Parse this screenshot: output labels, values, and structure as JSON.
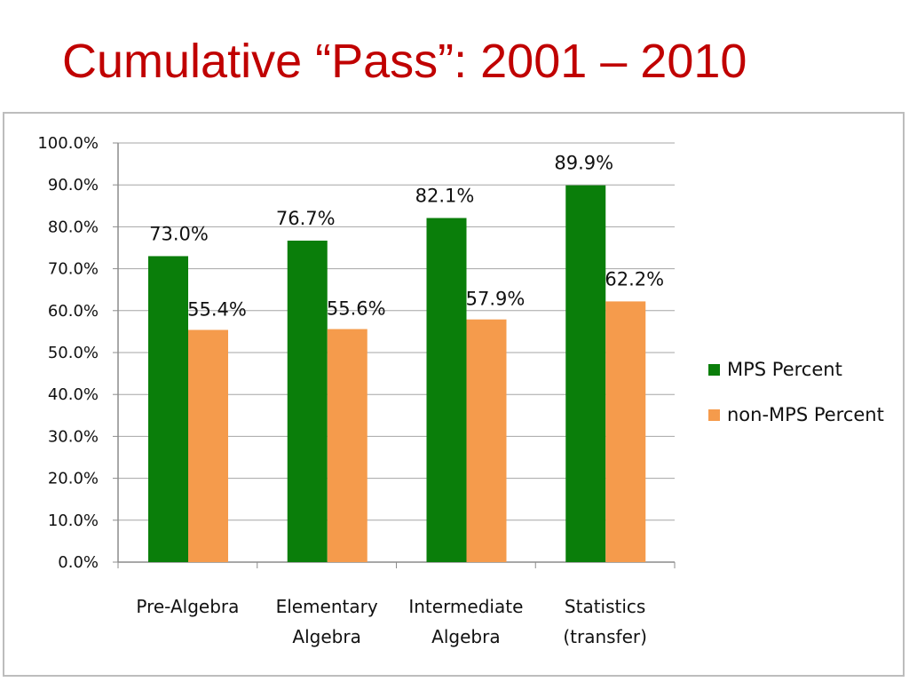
{
  "slide": {
    "title": "Cumulative “Pass”: 2001 – 2010"
  },
  "chart_data": {
    "type": "bar",
    "title": "",
    "xlabel": "",
    "ylabel": "",
    "ylim": [
      0,
      100
    ],
    "grid": true,
    "legend_position": "right",
    "y_ticks": [
      "0.0%",
      "10.0%",
      "20.0%",
      "30.0%",
      "40.0%",
      "50.0%",
      "60.0%",
      "70.0%",
      "80.0%",
      "90.0%",
      "100.0%"
    ],
    "categories": [
      [
        "Pre-Algebra"
      ],
      [
        "Elementary",
        "Algebra"
      ],
      [
        "Intermediate",
        "Algebra"
      ],
      [
        "Statistics",
        "(transfer)"
      ]
    ],
    "series": [
      {
        "name": "MPS Percent",
        "color": "#0a7e0a",
        "values": [
          73.0,
          76.7,
          82.1,
          89.9
        ],
        "labels": [
          "73.0%",
          "76.7%",
          "82.1%",
          "89.9%"
        ]
      },
      {
        "name": "non-MPS Percent",
        "color": "#f59b4c",
        "values": [
          55.4,
          55.6,
          57.9,
          62.2
        ],
        "labels": [
          "55.4%",
          "55.6%",
          "57.9%",
          "62.2%"
        ]
      }
    ]
  }
}
